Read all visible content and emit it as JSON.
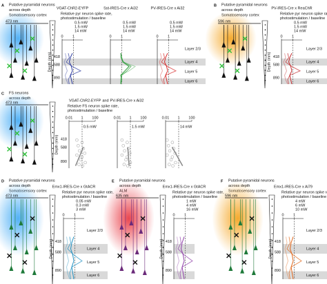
{
  "panels": [
    {
      "letter": "A",
      "heading": [
        "Putative pyramidal neurons",
        "across depth",
        "Somatosensory cortex"
      ],
      "laser": "473 nm",
      "xlabel": [
        "Relative pyr neuron spike rate,",
        "photostimulation / baseline"
      ],
      "ylabel": "Depth (mm)",
      "depth": [
        "418",
        "588",
        "890"
      ],
      "xticks": [
        "0",
        "1"
      ],
      "legend": [
        "0.5 mW",
        "1.5 mW",
        "14 mW"
      ],
      "layers": [
        "Layer 2/3",
        "Layer 4",
        "Layer 5",
        "Layer 6"
      ],
      "plots": [
        {
          "title": "VGAT-ChR2-EYFP",
          "color": "#2b3a9e"
        },
        {
          "title": "Sst-IRES-Cre x Ai32",
          "color": "#2e9e3a"
        },
        {
          "title": "PV-IRES-Cre x Ai32",
          "color": "#d62828"
        }
      ]
    },
    {
      "letter": "B",
      "heading": [
        "Putative pyramidal neurons",
        "across depth",
        "Somatosensory cortex"
      ],
      "laser": "596 nm",
      "xlabel": [
        "Relative pyr neuron spike rate,",
        "photostimulation / baseline"
      ],
      "ylabel": "Depth (mm)",
      "depth": [
        "418",
        "588",
        "890"
      ],
      "xticks": [
        "0",
        "1"
      ],
      "legend": [
        "0.5 mW",
        "1.5 mW",
        "14 mW"
      ],
      "layers": [
        "Layer 2/3",
        "Layer 4",
        "Layer 5",
        "Layer 6"
      ],
      "plots": [
        {
          "title": "PV-IRES-Cre x ReaChR",
          "color": "#c0282b"
        }
      ]
    },
    {
      "letter": "C",
      "heading": [
        "FS neurons",
        "across depth"
      ],
      "laser": "473 nm",
      "source": [
        "VGAT-ChR2-EYFP",
        "and",
        "PV-IRES-Cre x Ai32"
      ],
      "xlabel": [
        "Relative FS neuron spike rate,",
        "photostimulation / baseline"
      ],
      "ylabel": "Depth (mm)",
      "depth": [
        "418",
        "588",
        "890"
      ],
      "xticks": [
        "0.01",
        "1",
        "100"
      ],
      "plots": [
        {
          "label": "0.5 mW"
        },
        {
          "label": "1.5 mW"
        },
        {
          "label": "14 mW"
        }
      ]
    },
    {
      "letter": "D",
      "heading": [
        "Putative pyramidal neurons",
        "across depth",
        "Somatosensory cortex"
      ],
      "laser": "473 nm",
      "xlabel": [
        "Relative pyr neuron spike rate,",
        "photostimulation / baseline"
      ],
      "ylabel": "Depth (mm)",
      "depth": [
        "418",
        "588",
        "890"
      ],
      "xticks": [
        "0",
        "1"
      ],
      "legend": [
        "0.05 mW",
        "0.3 mW",
        "3 mW"
      ],
      "layers": [
        "Layer 2/3",
        "Layer 4",
        "Layer 5",
        "Layer 6"
      ],
      "plots": [
        {
          "title": "Emx1-IRES-Cre x GtACR",
          "color": "#1f8fc0"
        }
      ]
    },
    {
      "letter": "E",
      "heading": [
        "Putative pyramidal neurons",
        "across depth",
        "ALM"
      ],
      "laser": "635 nm",
      "xlabel": [
        "Relative pyr neuron spike rate,",
        "photostimulation / baseline"
      ],
      "ylabel": "Depth (mm)",
      "depth": [
        "418",
        "588",
        "890"
      ],
      "xticks": [
        "0",
        "1"
      ],
      "legend": [
        "1 mW",
        "4 mW",
        "16 mW"
      ],
      "plots": [
        {
          "title": "Emx1-IRES-Cre x GtACR",
          "color": "#8e3fa8"
        }
      ]
    },
    {
      "letter": "F",
      "heading": [
        "Putative pyramidal neurons",
        "across depth",
        "Somatosensory cortex"
      ],
      "laser": "596 nm",
      "xlabel": [
        "Relative pyr neuron spike rate,",
        "photostimulation / baseline"
      ],
      "ylabel": "Depth (mm)",
      "depth": [
        "418",
        "588",
        "890"
      ],
      "xticks": [
        "0",
        "1"
      ],
      "legend": [
        "4 mW",
        "6 mW",
        "10 mW"
      ],
      "layers": [
        "Layer 2/3",
        "Layer 4",
        "Layer 5",
        "Layer 6"
      ],
      "plots": [
        {
          "title": "Emx1-IRES-Cre x Ai79",
          "color": "#e0661a"
        }
      ]
    }
  ]
}
